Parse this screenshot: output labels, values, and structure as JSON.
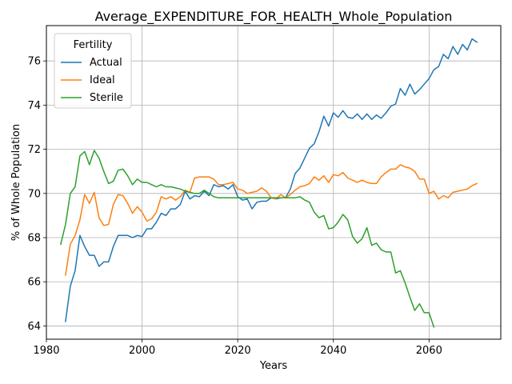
{
  "chart_data": {
    "type": "line",
    "title": "Average_EXPENDITURE_FOR_HEALTH_Whole_Population",
    "xlabel": "Years",
    "ylabel": "% of Whole Population",
    "xlim": [
      1980,
      2075
    ],
    "ylim": [
      63.4,
      77.6
    ],
    "xticks": [
      1980,
      2000,
      2020,
      2040,
      2060
    ],
    "yticks": [
      64,
      66,
      68,
      70,
      72,
      74,
      76
    ],
    "grid": true,
    "legend": {
      "title": "Fertility",
      "placement": "top-left"
    },
    "series": [
      {
        "name": "Actual",
        "color": "#1f77b4",
        "x": [
          1984,
          1985,
          1986,
          1987,
          1988,
          1989,
          1990,
          1991,
          1992,
          1993,
          1994,
          1995,
          1996,
          1997,
          1998,
          1999,
          2000,
          2001,
          2002,
          2003,
          2004,
          2005,
          2006,
          2007,
          2008,
          2009,
          2010,
          2011,
          2012,
          2013,
          2014,
          2015,
          2016,
          2017,
          2018,
          2019,
          2020,
          2021,
          2022,
          2023,
          2024,
          2025,
          2026,
          2027,
          2028,
          2029,
          2030,
          2031,
          2032,
          2033,
          2034,
          2035,
          2036,
          2037,
          2038,
          2039,
          2040,
          2041,
          2042,
          2043,
          2044,
          2045,
          2046,
          2047,
          2048,
          2049,
          2050,
          2051,
          2052,
          2053,
          2054,
          2055,
          2056,
          2057,
          2058,
          2059,
          2060,
          2061,
          2062,
          2063,
          2064,
          2065,
          2066,
          2067,
          2068,
          2069,
          2070
        ],
        "values": [
          64.2,
          65.8,
          66.5,
          68.1,
          67.6,
          67.2,
          67.2,
          66.7,
          66.9,
          66.9,
          67.6,
          68.1,
          68.1,
          68.1,
          68.0,
          68.1,
          68.05,
          68.4,
          68.4,
          68.7,
          69.1,
          69.0,
          69.3,
          69.3,
          69.5,
          70.1,
          69.75,
          69.9,
          69.85,
          70.1,
          69.9,
          70.4,
          70.3,
          70.35,
          70.2,
          70.4,
          69.85,
          69.7,
          69.75,
          69.3,
          69.6,
          69.65,
          69.65,
          69.8,
          69.75,
          69.8,
          69.8,
          70.2,
          70.9,
          71.15,
          71.6,
          72.05,
          72.25,
          72.8,
          73.5,
          73.05,
          73.65,
          73.45,
          73.75,
          73.45,
          73.4,
          73.6,
          73.35,
          73.6,
          73.35,
          73.55,
          73.4,
          73.65,
          73.95,
          74.05,
          74.75,
          74.45,
          74.95,
          74.5,
          74.7,
          74.95,
          75.2,
          75.6,
          75.75,
          76.3,
          76.1,
          76.65,
          76.3,
          76.75,
          76.5,
          77.0,
          76.85
        ]
      },
      {
        "name": "Ideal",
        "color": "#ff7f0e",
        "x": [
          1984,
          1985,
          1986,
          1987,
          1988,
          1989,
          1990,
          1991,
          1992,
          1993,
          1994,
          1995,
          1996,
          1997,
          1998,
          1999,
          2000,
          2001,
          2002,
          2003,
          2004,
          2005,
          2006,
          2007,
          2008,
          2009,
          2010,
          2011,
          2012,
          2013,
          2014,
          2015,
          2016,
          2017,
          2018,
          2019,
          2020,
          2021,
          2022,
          2023,
          2024,
          2025,
          2026,
          2027,
          2028,
          2029,
          2030,
          2031,
          2032,
          2033,
          2034,
          2035,
          2036,
          2037,
          2038,
          2039,
          2040,
          2041,
          2042,
          2043,
          2044,
          2045,
          2046,
          2047,
          2048,
          2049,
          2050,
          2051,
          2052,
          2053,
          2054,
          2055,
          2056,
          2057,
          2058,
          2059,
          2060,
          2061,
          2062,
          2063,
          2064,
          2065,
          2066,
          2067,
          2068,
          2069,
          2070
        ],
        "values": [
          66.3,
          67.7,
          68.1,
          68.8,
          69.95,
          69.55,
          70.05,
          68.9,
          68.55,
          68.6,
          69.5,
          69.95,
          69.9,
          69.55,
          69.1,
          69.4,
          69.15,
          68.75,
          68.85,
          69.15,
          69.85,
          69.75,
          69.85,
          69.7,
          69.85,
          70.15,
          70.05,
          70.7,
          70.75,
          70.75,
          70.75,
          70.65,
          70.4,
          70.4,
          70.45,
          70.5,
          70.2,
          70.15,
          70.0,
          70.05,
          70.1,
          70.25,
          70.1,
          69.8,
          69.75,
          69.95,
          69.8,
          69.95,
          70.15,
          70.3,
          70.35,
          70.45,
          70.75,
          70.6,
          70.8,
          70.5,
          70.85,
          70.8,
          70.95,
          70.7,
          70.6,
          70.5,
          70.6,
          70.5,
          70.45,
          70.45,
          70.75,
          70.95,
          71.1,
          71.1,
          71.3,
          71.2,
          71.15,
          71.0,
          70.65,
          70.65,
          70.0,
          70.1,
          69.75,
          69.9,
          69.8,
          70.05,
          70.1,
          70.15,
          70.2,
          70.35,
          70.45
        ]
      },
      {
        "name": "Sterile",
        "color": "#2ca02c",
        "x": [
          1983,
          1984,
          1985,
          1986,
          1987,
          1988,
          1989,
          1990,
          1991,
          1992,
          1993,
          1994,
          1995,
          1996,
          1997,
          1998,
          1999,
          2000,
          2001,
          2002,
          2003,
          2004,
          2005,
          2006,
          2007,
          2008,
          2009,
          2010,
          2011,
          2012,
          2013,
          2014,
          2015,
          2016,
          2017,
          2018,
          2019,
          2020,
          2021,
          2022,
          2023,
          2024,
          2025,
          2026,
          2027,
          2028,
          2029,
          2030,
          2031,
          2032,
          2033,
          2034,
          2035,
          2036,
          2037,
          2038,
          2039,
          2040,
          2041,
          2042,
          2043,
          2044,
          2045,
          2046,
          2047,
          2048,
          2049,
          2050,
          2051,
          2052,
          2053,
          2054,
          2055,
          2056,
          2057,
          2058,
          2059,
          2060,
          2061
        ],
        "values": [
          67.7,
          68.6,
          70.0,
          70.3,
          71.7,
          71.9,
          71.3,
          71.95,
          71.6,
          71.0,
          70.45,
          70.55,
          71.05,
          71.1,
          70.8,
          70.4,
          70.65,
          70.5,
          70.5,
          70.4,
          70.3,
          70.4,
          70.3,
          70.3,
          70.25,
          70.2,
          70.1,
          70.05,
          70.0,
          70.0,
          70.15,
          70.0,
          69.85,
          69.8,
          69.8,
          69.8,
          69.8,
          69.8,
          69.8,
          69.8,
          69.8,
          69.8,
          69.8,
          69.8,
          69.8,
          69.8,
          69.8,
          69.8,
          69.8,
          69.8,
          69.85,
          69.7,
          69.6,
          69.15,
          68.9,
          69.0,
          68.4,
          68.45,
          68.7,
          69.05,
          68.8,
          68.05,
          67.75,
          67.95,
          68.45,
          67.65,
          67.75,
          67.45,
          67.35,
          67.35,
          66.4,
          66.5,
          65.95,
          65.3,
          64.7,
          65.0,
          64.6,
          64.6,
          63.95
        ]
      }
    ]
  }
}
